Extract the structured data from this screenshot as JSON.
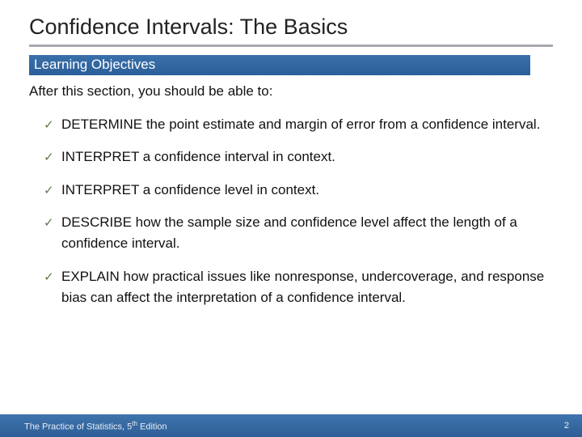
{
  "colors": {
    "title_underline": "#a8a8b0",
    "subtitle_bg": "#2b5f99",
    "subtitle_text": "#ffffff",
    "body_text": "#111111",
    "check_color": "#5b7a4a",
    "footer_bg": "#336699",
    "footer_text": "#e8eef6",
    "page_bg": "#ffffff"
  },
  "typography": {
    "title_fontsize": 27,
    "subtitle_fontsize": 17,
    "body_fontsize": 17,
    "footer_fontsize": 11,
    "font_family": "Arial"
  },
  "title": "Confidence Intervals: The Basics",
  "subtitle": "Learning Objectives",
  "intro": "After this section, you should be able to:",
  "check_glyph": "✓",
  "objectives": [
    "DETERMINE the point estimate and margin of error from a confidence interval.",
    "INTERPRET a confidence interval in context.",
    "INTERPRET a confidence level in context.",
    "DESCRIBE how the sample size and confidence level affect the length of a confidence interval.",
    "EXPLAIN how practical issues like nonresponse, undercoverage, and response bias can affect the interpretation of a confidence interval."
  ],
  "footer": {
    "left_pre": "The Practice of Statistics, 5",
    "left_sup": "th",
    "left_post": " Edition",
    "page_number": "2"
  }
}
